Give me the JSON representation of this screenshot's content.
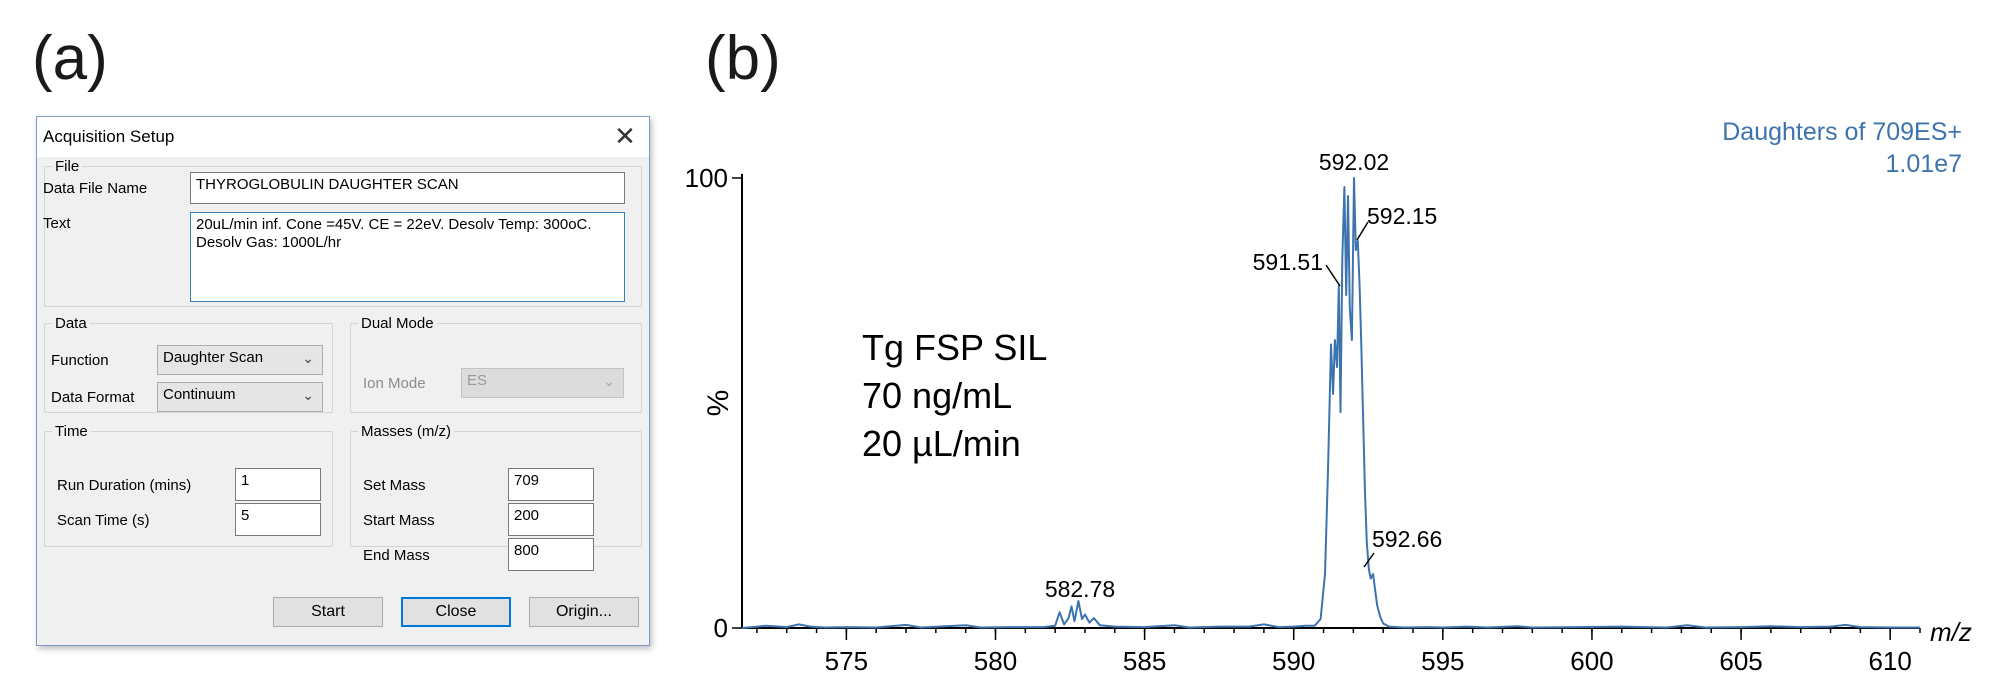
{
  "panels": {
    "a": "(a)",
    "b": "(b)"
  },
  "dialog": {
    "title": "Acquisition Setup",
    "file": {
      "legend": "File",
      "data_file_name_label": "Data File Name",
      "data_file_name_value": "THYROGLOBULIN DAUGHTER SCAN",
      "text_label": "Text",
      "text_value": "20uL/min inf. Cone =45V. CE = 22eV. Desolv Temp: 300oC. Desolv Gas: 1000L/hr"
    },
    "data": {
      "legend": "Data",
      "function_label": "Function",
      "function_value": "Daughter Scan",
      "format_label": "Data Format",
      "format_value": "Continuum"
    },
    "dual_mode": {
      "legend": "Dual Mode",
      "ion_mode_label": "Ion Mode",
      "ion_mode_value": "ES"
    },
    "time": {
      "legend": "Time",
      "run_duration_label": "Run Duration (mins)",
      "run_duration_value": "1",
      "scan_time_label": "Scan Time (s)",
      "scan_time_value": "5"
    },
    "masses": {
      "legend": "Masses (m/z)",
      "set_mass_label": "Set Mass",
      "set_mass_value": "709",
      "start_mass_label": "Start Mass",
      "start_mass_value": "200",
      "end_mass_label": "End Mass",
      "end_mass_value": "800"
    },
    "buttons": {
      "start": "Start",
      "close": "Close",
      "origin": "Origin..."
    }
  },
  "colors": {
    "spectrum": "#3e74ad",
    "header_text": "#3e74ad",
    "dialog_border": "#7a9cc4",
    "default_button": "#0078d7"
  },
  "chart_data": {
    "type": "line",
    "header": [
      "Daughters of 709ES+",
      "1.01e7"
    ],
    "ylabel": "%",
    "xlabel": "m/z",
    "xlim": [
      571.5,
      611.0
    ],
    "ylim": [
      0,
      100
    ],
    "x_ticks": [
      575,
      580,
      585,
      590,
      595,
      600,
      605,
      610
    ],
    "y_ticks": [
      0,
      100
    ],
    "annotation": [
      "Tg FSP SIL",
      "70 ng/mL",
      "20 µL/min"
    ],
    "peak_labels": [
      {
        "label": "582.78",
        "x": 582.78,
        "y": 6
      },
      {
        "label": "591.51",
        "x": 591.51,
        "y": 76
      },
      {
        "label": "592.02",
        "x": 592.02,
        "y": 100
      },
      {
        "label": "592.15",
        "x": 592.15,
        "y": 86
      },
      {
        "label": "592.66",
        "x": 592.66,
        "y": 12
      }
    ],
    "series": [
      {
        "points": [
          [
            571.5,
            0
          ],
          [
            572.3,
            0.5
          ],
          [
            573.0,
            0.2
          ],
          [
            573.4,
            0.8
          ],
          [
            573.8,
            0.3
          ],
          [
            574.3,
            0.1
          ],
          [
            575.0,
            0.2
          ],
          [
            576.0,
            0.1
          ],
          [
            577.0,
            0.7
          ],
          [
            577.5,
            0.1
          ],
          [
            579.0,
            0.6
          ],
          [
            579.5,
            0.1
          ],
          [
            580.5,
            0.2
          ],
          [
            581.6,
            0.2
          ],
          [
            582.0,
            0.5
          ],
          [
            582.15,
            3.5
          ],
          [
            582.3,
            0.8
          ],
          [
            582.45,
            2.2
          ],
          [
            582.55,
            4.8
          ],
          [
            582.65,
            1.5
          ],
          [
            582.78,
            6.0
          ],
          [
            582.9,
            2.0
          ],
          [
            583.0,
            3.0
          ],
          [
            583.15,
            1.2
          ],
          [
            583.3,
            2.2
          ],
          [
            583.5,
            0.6
          ],
          [
            584.0,
            0.3
          ],
          [
            585.0,
            0.2
          ],
          [
            586.0,
            0.6
          ],
          [
            586.5,
            0.1
          ],
          [
            587.5,
            0.3
          ],
          [
            588.5,
            0.3
          ],
          [
            589.0,
            0.8
          ],
          [
            589.5,
            0.2
          ],
          [
            590.0,
            0.3
          ],
          [
            590.4,
            0.5
          ],
          [
            590.7,
            0.5
          ],
          [
            590.9,
            2.0
          ],
          [
            591.05,
            12.0
          ],
          [
            591.15,
            35.0
          ],
          [
            591.25,
            63.0
          ],
          [
            591.32,
            52.0
          ],
          [
            591.38,
            64.0
          ],
          [
            591.45,
            58.0
          ],
          [
            591.51,
            76.0
          ],
          [
            591.57,
            48.0
          ],
          [
            591.63,
            82.0
          ],
          [
            591.7,
            98.0
          ],
          [
            591.76,
            74.0
          ],
          [
            591.82,
            96.0
          ],
          [
            591.88,
            71.0
          ],
          [
            591.95,
            64.0
          ],
          [
            592.02,
            100.0
          ],
          [
            592.08,
            84.0
          ],
          [
            592.15,
            86.0
          ],
          [
            592.21,
            76.0
          ],
          [
            592.27,
            62.0
          ],
          [
            592.33,
            46.0
          ],
          [
            592.39,
            30.0
          ],
          [
            592.45,
            19.0
          ],
          [
            592.52,
            13.0
          ],
          [
            592.58,
            11.0
          ],
          [
            592.66,
            12.0
          ],
          [
            592.72,
            9.0
          ],
          [
            592.8,
            5.0
          ],
          [
            592.9,
            2.5
          ],
          [
            593.0,
            1.0
          ],
          [
            593.2,
            0.3
          ],
          [
            593.7,
            0.1
          ],
          [
            594.5,
            0.2
          ],
          [
            595.0,
            0.1
          ],
          [
            595.8,
            0.3
          ],
          [
            596.5,
            0.1
          ],
          [
            597.5,
            0.4
          ],
          [
            598.0,
            0.1
          ],
          [
            599.5,
            0.2
          ],
          [
            601.0,
            0.3
          ],
          [
            602.5,
            0.1
          ],
          [
            603.2,
            0.6
          ],
          [
            603.8,
            0.1
          ],
          [
            605.0,
            0.2
          ],
          [
            606.0,
            0.4
          ],
          [
            607.0,
            0.2
          ],
          [
            608.0,
            0.3
          ],
          [
            608.5,
            0.7
          ],
          [
            609.0,
            0.2
          ],
          [
            610.0,
            0.1
          ],
          [
            611.0,
            0.1
          ]
        ]
      }
    ]
  }
}
